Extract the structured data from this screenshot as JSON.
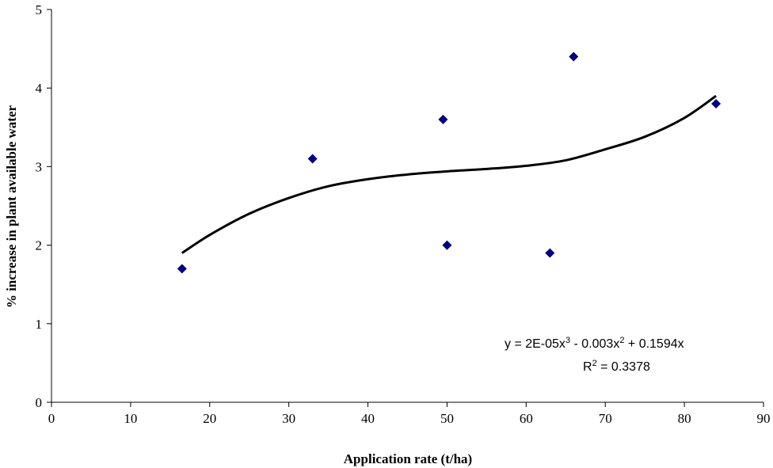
{
  "chart_data": {
    "type": "scatter",
    "title": "",
    "xlabel": "Application rate (t/ha)",
    "ylabel": "% increase in plant available water",
    "xlim": [
      0,
      90
    ],
    "ylim": [
      0,
      5
    ],
    "xticks": [
      "0",
      "10",
      "20",
      "30",
      "40",
      "50",
      "60",
      "70",
      "80",
      "90"
    ],
    "yticks": [
      "0",
      "1",
      "2",
      "3",
      "4",
      "5"
    ],
    "grid": false,
    "legend": "none",
    "marker_color": "#000080",
    "trend_color": "#000000",
    "points": [
      {
        "x": 16.5,
        "y": 1.7
      },
      {
        "x": 33,
        "y": 3.1
      },
      {
        "x": 49.5,
        "y": 3.6
      },
      {
        "x": 50,
        "y": 2.0
      },
      {
        "x": 63,
        "y": 1.9
      },
      {
        "x": 66,
        "y": 4.4
      },
      {
        "x": 84,
        "y": 3.8
      }
    ],
    "trendline": {
      "type": "polynomial-3",
      "x_range": [
        16.5,
        84
      ],
      "points": [
        {
          "x": 16.5,
          "y": 1.9
        },
        {
          "x": 20,
          "y": 2.13
        },
        {
          "x": 25,
          "y": 2.4
        },
        {
          "x": 30,
          "y": 2.6
        },
        {
          "x": 35,
          "y": 2.75
        },
        {
          "x": 40,
          "y": 2.84
        },
        {
          "x": 45,
          "y": 2.9
        },
        {
          "x": 50,
          "y": 2.94
        },
        {
          "x": 55,
          "y": 2.97
        },
        {
          "x": 60,
          "y": 3.01
        },
        {
          "x": 65,
          "y": 3.08
        },
        {
          "x": 70,
          "y": 3.22
        },
        {
          "x": 75,
          "y": 3.38
        },
        {
          "x": 80,
          "y": 3.62
        },
        {
          "x": 84,
          "y": 3.9
        }
      ]
    },
    "annotations": {
      "equation_line1_prefix": "y = 2E-05x",
      "equation_line1_exp1": "3",
      "equation_line1_middle": " - 0.003x",
      "equation_line1_exp2": "2",
      "equation_line1_suffix": " + 0.1594x",
      "r2_prefix": "R",
      "r2_exp": "2",
      "r2_suffix": " = 0.3378"
    }
  }
}
